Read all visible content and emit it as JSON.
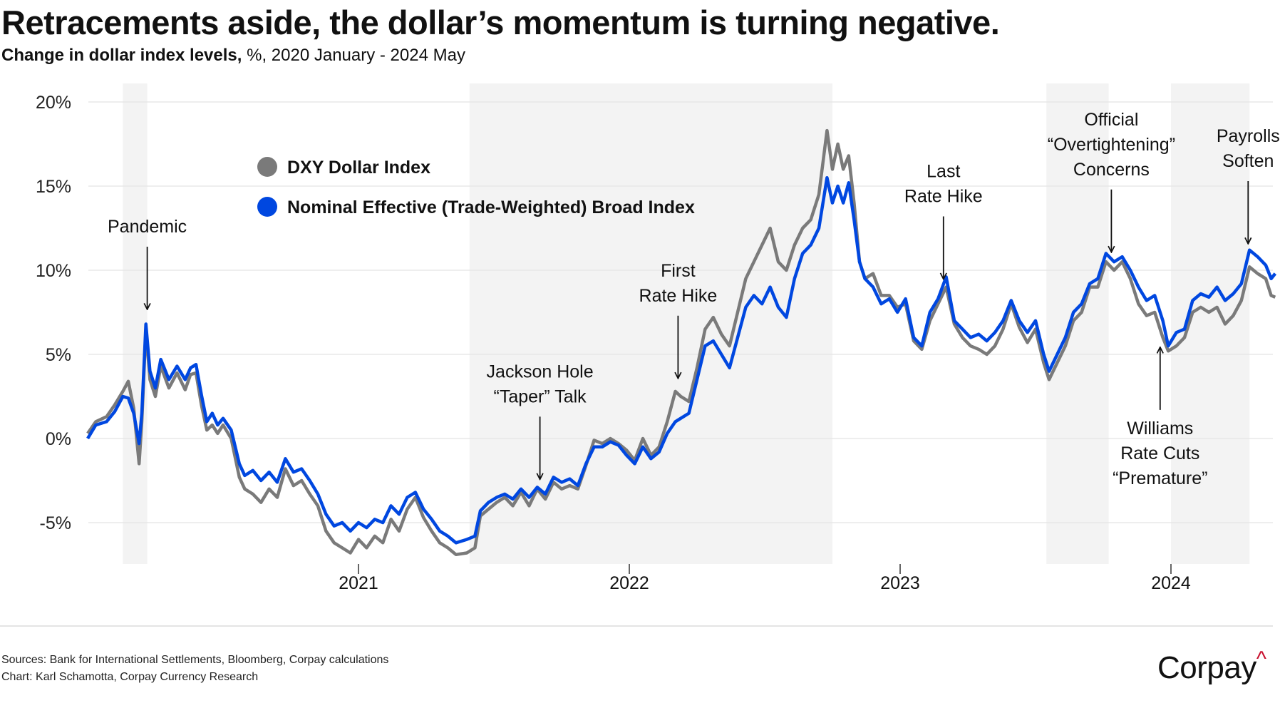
{
  "header": {
    "title": "Retracements aside, the dollar’s momentum is turning negative.",
    "subtitle_bold": "Change in dollar index levels,",
    "subtitle_rest": " %, 2020 January - 2024 May"
  },
  "footer": {
    "sources": "Sources: Bank for International Settlements, Bloomberg, Corpay calculations",
    "credit": "Chart: Karl Schamotta, Corpay Currency Research",
    "logo": "Corpay"
  },
  "chart_data": {
    "type": "line",
    "title": "Retracements aside, the dollar’s momentum is turning negative.",
    "ylabel": "Change in dollar index levels, %",
    "ylim": [
      -7.5,
      21
    ],
    "xlim": [
      2020.0,
      2024.4
    ],
    "yticks": [
      20,
      15,
      10,
      5,
      0,
      -5
    ],
    "ytick_labels": [
      "20%",
      "15%",
      "10%",
      "5%",
      "0%",
      "-5%"
    ],
    "xticks": [
      2021,
      2022,
      2023,
      2024
    ],
    "xtick_labels": [
      "2021",
      "2022",
      "2023",
      "2024"
    ],
    "grid": true,
    "legend_position": "top-left",
    "colors": {
      "dxy": "#7a7a7a",
      "broad": "#0047e0",
      "shade": "#f3f3f3"
    },
    "shaded_periods": [
      [
        2020.13,
        2020.22
      ],
      [
        2021.41,
        2022.75
      ],
      [
        2023.54,
        2023.77
      ],
      [
        2024.0,
        2024.29
      ]
    ],
    "series": [
      {
        "name": "DXY Dollar Index",
        "key": "dxy"
      },
      {
        "name": "Nominal Effective (Trade-Weighted) Broad Index",
        "key": "broad"
      }
    ],
    "points_columns": [
      "year",
      "broad",
      "dxy"
    ],
    "points": [
      [
        2020.0,
        0,
        0.3
      ],
      [
        2020.03,
        0.8,
        1.0
      ],
      [
        2020.07,
        1.0,
        1.3
      ],
      [
        2020.1,
        1.6,
        2.0
      ],
      [
        2020.13,
        2.5,
        2.8
      ],
      [
        2020.15,
        2.4,
        3.4
      ],
      [
        2020.17,
        1.5,
        1.8
      ],
      [
        2020.19,
        -0.3,
        -1.5
      ],
      [
        2020.2,
        1.5,
        1.0
      ],
      [
        2020.215,
        6.8,
        6.5
      ],
      [
        2020.23,
        4.0,
        3.5
      ],
      [
        2020.25,
        3.0,
        2.5
      ],
      [
        2020.27,
        4.7,
        4.3
      ],
      [
        2020.3,
        3.5,
        3.0
      ],
      [
        2020.33,
        4.3,
        3.9
      ],
      [
        2020.36,
        3.5,
        2.9
      ],
      [
        2020.38,
        4.2,
        3.8
      ],
      [
        2020.4,
        4.4,
        3.9
      ],
      [
        2020.42,
        2.6,
        2.0
      ],
      [
        2020.44,
        1.0,
        0.5
      ],
      [
        2020.46,
        1.5,
        0.8
      ],
      [
        2020.48,
        0.8,
        0.3
      ],
      [
        2020.5,
        1.2,
        0.8
      ],
      [
        2020.53,
        0.5,
        0.0
      ],
      [
        2020.56,
        -1.5,
        -2.3
      ],
      [
        2020.58,
        -2.2,
        -3.0
      ],
      [
        2020.61,
        -1.9,
        -3.3
      ],
      [
        2020.64,
        -2.5,
        -3.8
      ],
      [
        2020.67,
        -2.0,
        -3.0
      ],
      [
        2020.7,
        -2.6,
        -3.5
      ],
      [
        2020.73,
        -1.2,
        -1.8
      ],
      [
        2020.76,
        -2.0,
        -2.8
      ],
      [
        2020.79,
        -1.8,
        -2.5
      ],
      [
        2020.82,
        -2.5,
        -3.3
      ],
      [
        2020.85,
        -3.3,
        -4.0
      ],
      [
        2020.88,
        -4.5,
        -5.5
      ],
      [
        2020.91,
        -5.2,
        -6.2
      ],
      [
        2020.94,
        -5.0,
        -6.5
      ],
      [
        2020.97,
        -5.5,
        -6.8
      ],
      [
        2021.0,
        -5.0,
        -6.0
      ],
      [
        2021.03,
        -5.3,
        -6.5
      ],
      [
        2021.06,
        -4.8,
        -5.8
      ],
      [
        2021.09,
        -5.0,
        -6.2
      ],
      [
        2021.12,
        -4.0,
        -4.8
      ],
      [
        2021.15,
        -4.5,
        -5.5
      ],
      [
        2021.18,
        -3.5,
        -4.2
      ],
      [
        2021.21,
        -3.2,
        -3.5
      ],
      [
        2021.24,
        -4.2,
        -4.7
      ],
      [
        2021.27,
        -4.8,
        -5.5
      ],
      [
        2021.3,
        -5.5,
        -6.2
      ],
      [
        2021.33,
        -5.8,
        -6.5
      ],
      [
        2021.36,
        -6.2,
        -6.9
      ],
      [
        2021.4,
        -6.0,
        -6.8
      ],
      [
        2021.43,
        -5.8,
        -6.5
      ],
      [
        2021.45,
        -4.3,
        -4.6
      ],
      [
        2021.48,
        -3.8,
        -4.2
      ],
      [
        2021.51,
        -3.5,
        -3.8
      ],
      [
        2021.54,
        -3.3,
        -3.5
      ],
      [
        2021.57,
        -3.6,
        -4.0
      ],
      [
        2021.6,
        -3.0,
        -3.2
      ],
      [
        2021.63,
        -3.5,
        -4.0
      ],
      [
        2021.66,
        -2.9,
        -3.0
      ],
      [
        2021.69,
        -3.3,
        -3.6
      ],
      [
        2021.72,
        -2.3,
        -2.6
      ],
      [
        2021.75,
        -2.6,
        -3.0
      ],
      [
        2021.78,
        -2.4,
        -2.8
      ],
      [
        2021.81,
        -2.8,
        -3.0
      ],
      [
        2021.84,
        -1.5,
        -1.6
      ],
      [
        2021.87,
        -0.5,
        -0.1
      ],
      [
        2021.9,
        -0.5,
        -0.3
      ],
      [
        2021.93,
        -0.2,
        0.0
      ],
      [
        2021.96,
        -0.4,
        -0.3
      ],
      [
        2021.99,
        -1.0,
        -0.7
      ],
      [
        2022.02,
        -1.5,
        -1.3
      ],
      [
        2022.05,
        -0.5,
        0.0
      ],
      [
        2022.08,
        -1.2,
        -1.0
      ],
      [
        2022.11,
        -0.8,
        -0.5
      ],
      [
        2022.14,
        0.3,
        1.0
      ],
      [
        2022.17,
        1.0,
        2.8
      ],
      [
        2022.19,
        1.2,
        2.5
      ],
      [
        2022.22,
        1.5,
        2.2
      ],
      [
        2022.25,
        3.5,
        4.2
      ],
      [
        2022.28,
        5.5,
        6.5
      ],
      [
        2022.31,
        5.8,
        7.2
      ],
      [
        2022.34,
        5.0,
        6.2
      ],
      [
        2022.37,
        4.2,
        5.5
      ],
      [
        2022.4,
        6.0,
        7.5
      ],
      [
        2022.43,
        7.8,
        9.5
      ],
      [
        2022.46,
        8.5,
        10.5
      ],
      [
        2022.49,
        8.0,
        11.5
      ],
      [
        2022.52,
        9.0,
        12.5
      ],
      [
        2022.55,
        7.8,
        10.5
      ],
      [
        2022.58,
        7.2,
        10.0
      ],
      [
        2022.61,
        9.5,
        11.5
      ],
      [
        2022.64,
        11.0,
        12.5
      ],
      [
        2022.67,
        11.5,
        13.0
      ],
      [
        2022.7,
        12.5,
        14.5
      ],
      [
        2022.73,
        15.5,
        18.3
      ],
      [
        2022.75,
        14.0,
        16.0
      ],
      [
        2022.77,
        15.0,
        17.5
      ],
      [
        2022.79,
        14.0,
        16.0
      ],
      [
        2022.81,
        15.2,
        16.8
      ],
      [
        2022.83,
        13.0,
        14.0
      ],
      [
        2022.85,
        10.5,
        10.5
      ],
      [
        2022.87,
        9.5,
        9.5
      ],
      [
        2022.9,
        9.0,
        9.8
      ],
      [
        2022.93,
        8.0,
        8.5
      ],
      [
        2022.96,
        8.3,
        8.5
      ],
      [
        2022.99,
        7.5,
        7.8
      ],
      [
        2023.02,
        8.3,
        8.0
      ],
      [
        2023.05,
        6.0,
        5.8
      ],
      [
        2023.08,
        5.5,
        5.3
      ],
      [
        2023.11,
        7.5,
        7.0
      ],
      [
        2023.14,
        8.3,
        8.0
      ],
      [
        2023.17,
        9.6,
        9.0
      ],
      [
        2023.2,
        7.0,
        6.8
      ],
      [
        2023.23,
        6.5,
        6.0
      ],
      [
        2023.26,
        6.0,
        5.5
      ],
      [
        2023.29,
        6.2,
        5.3
      ],
      [
        2023.32,
        5.8,
        5.0
      ],
      [
        2023.35,
        6.3,
        5.5
      ],
      [
        2023.38,
        7.0,
        6.5
      ],
      [
        2023.41,
        8.2,
        8.0
      ],
      [
        2023.44,
        7.0,
        6.6
      ],
      [
        2023.47,
        6.3,
        5.7
      ],
      [
        2023.5,
        7.0,
        6.5
      ],
      [
        2023.53,
        5.0,
        4.5
      ],
      [
        2023.55,
        4.0,
        3.5
      ],
      [
        2023.58,
        5.0,
        4.5
      ],
      [
        2023.61,
        6.0,
        5.5
      ],
      [
        2023.64,
        7.5,
        7.0
      ],
      [
        2023.67,
        8.0,
        7.5
      ],
      [
        2023.7,
        9.2,
        9.0
      ],
      [
        2023.73,
        9.5,
        9.0
      ],
      [
        2023.76,
        11.0,
        10.5
      ],
      [
        2023.79,
        10.5,
        10.0
      ],
      [
        2023.82,
        10.8,
        10.5
      ],
      [
        2023.85,
        10.0,
        9.5
      ],
      [
        2023.88,
        9.0,
        8.0
      ],
      [
        2023.91,
        8.2,
        7.3
      ],
      [
        2023.94,
        8.5,
        7.5
      ],
      [
        2023.97,
        7.0,
        6.0
      ],
      [
        2023.99,
        5.5,
        5.2
      ],
      [
        2024.02,
        6.3,
        5.5
      ],
      [
        2024.05,
        6.5,
        6.0
      ],
      [
        2024.08,
        8.2,
        7.5
      ],
      [
        2024.11,
        8.6,
        7.8
      ],
      [
        2024.14,
        8.4,
        7.5
      ],
      [
        2024.17,
        9.0,
        7.8
      ],
      [
        2024.2,
        8.2,
        6.8
      ],
      [
        2024.23,
        8.6,
        7.3
      ],
      [
        2024.26,
        9.2,
        8.2
      ],
      [
        2024.29,
        11.2,
        10.2
      ],
      [
        2024.32,
        10.8,
        9.8
      ],
      [
        2024.35,
        10.3,
        9.5
      ],
      [
        2024.37,
        9.5,
        8.5
      ],
      [
        2024.385,
        9.8,
        8.4
      ]
    ],
    "annotations": [
      {
        "lines": [
          "Pandemic"
        ],
        "date": 2020.22,
        "value": 7.5,
        "direction": "down"
      },
      {
        "lines": [
          "Jackson Hole",
          "“Taper” Talk"
        ],
        "date": 2021.67,
        "value": -2.6,
        "direction": "down"
      },
      {
        "lines": [
          "First",
          "Rate Hike"
        ],
        "date": 2022.18,
        "value": 3.4,
        "direction": "down"
      },
      {
        "lines": [
          "Last",
          "Rate Hike"
        ],
        "date": 2023.16,
        "value": 9.3,
        "direction": "down"
      },
      {
        "lines": [
          "Official",
          "“Overtightening”",
          "Concerns"
        ],
        "date": 2023.78,
        "value": 10.9,
        "direction": "down"
      },
      {
        "lines": [
          "Payrolls",
          "Soften"
        ],
        "date": 2024.285,
        "value": 11.4,
        "direction": "down"
      },
      {
        "lines": [
          "Williams",
          "Rate Cuts",
          "“Premature”"
        ],
        "date": 2023.96,
        "value": 5.6,
        "direction": "up"
      }
    ]
  }
}
